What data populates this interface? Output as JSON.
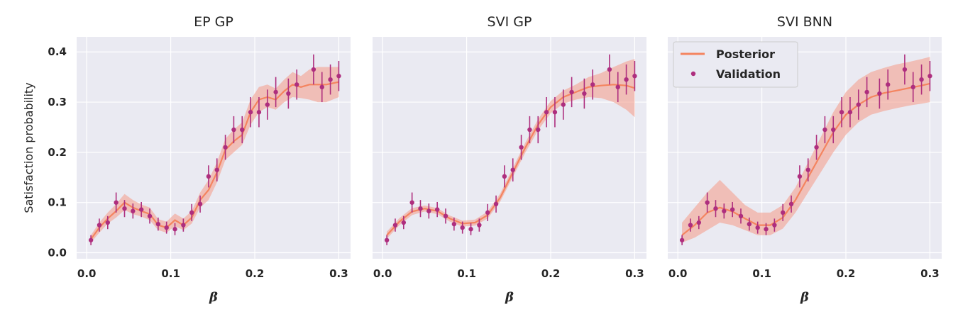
{
  "colors": {
    "band": "#f4a090",
    "mean": "#f4845f",
    "point": "#ae2e7e",
    "errorbar": "#ae2e7e"
  },
  "chart_data": [
    {
      "type": "line",
      "title": "EP GP",
      "xlabel": "β",
      "ylabel": "Satisfaction probability",
      "xlim": [
        -0.012,
        0.314
      ],
      "ylim": [
        -0.012,
        0.43
      ],
      "xticks": [
        "0.0",
        "0.1",
        "0.2",
        "0.3"
      ],
      "yticks": [
        "0.0",
        "0.1",
        "0.2",
        "0.3",
        "0.4"
      ],
      "grid": true,
      "legend": null,
      "series": [
        {
          "name": "Posterior",
          "kind": "mean_with_band",
          "x": [
            0.005,
            0.015,
            0.025,
            0.035,
            0.045,
            0.055,
            0.065,
            0.075,
            0.085,
            0.095,
            0.105,
            0.115,
            0.125,
            0.135,
            0.145,
            0.155,
            0.165,
            0.175,
            0.185,
            0.195,
            0.205,
            0.215,
            0.225,
            0.235,
            0.245,
            0.255,
            0.265,
            0.275,
            0.285,
            0.3
          ],
          "y": [
            0.027,
            0.05,
            0.068,
            0.083,
            0.1,
            0.09,
            0.083,
            0.077,
            0.055,
            0.05,
            0.065,
            0.055,
            0.07,
            0.105,
            0.125,
            0.16,
            0.205,
            0.222,
            0.235,
            0.28,
            0.305,
            0.31,
            0.305,
            0.322,
            0.335,
            0.33,
            0.335,
            0.335,
            0.335,
            0.34
          ],
          "lower": [
            0.02,
            0.04,
            0.058,
            0.07,
            0.085,
            0.077,
            0.072,
            0.065,
            0.045,
            0.04,
            0.053,
            0.045,
            0.058,
            0.09,
            0.105,
            0.14,
            0.185,
            0.2,
            0.215,
            0.255,
            0.28,
            0.29,
            0.285,
            0.3,
            0.31,
            0.308,
            0.305,
            0.3,
            0.3,
            0.31
          ],
          "upper": [
            0.035,
            0.06,
            0.08,
            0.097,
            0.117,
            0.105,
            0.096,
            0.09,
            0.067,
            0.062,
            0.078,
            0.068,
            0.083,
            0.12,
            0.145,
            0.18,
            0.227,
            0.245,
            0.26,
            0.305,
            0.33,
            0.335,
            0.327,
            0.345,
            0.36,
            0.352,
            0.365,
            0.37,
            0.37,
            0.37
          ]
        },
        {
          "name": "Validation",
          "kind": "points_with_errorbars",
          "x": [
            0.005,
            0.015,
            0.025,
            0.035,
            0.045,
            0.055,
            0.065,
            0.075,
            0.085,
            0.095,
            0.105,
            0.115,
            0.125,
            0.135,
            0.145,
            0.155,
            0.165,
            0.175,
            0.185,
            0.195,
            0.205,
            0.215,
            0.225,
            0.24,
            0.25,
            0.27,
            0.28,
            0.29,
            0.3
          ],
          "y": [
            0.025,
            0.055,
            0.06,
            0.1,
            0.088,
            0.083,
            0.086,
            0.073,
            0.057,
            0.05,
            0.047,
            0.055,
            0.08,
            0.097,
            0.152,
            0.165,
            0.21,
            0.245,
            0.245,
            0.28,
            0.28,
            0.295,
            0.32,
            0.317,
            0.335,
            0.365,
            0.33,
            0.345,
            0.352
          ],
          "err": [
            0.01,
            0.013,
            0.013,
            0.02,
            0.017,
            0.015,
            0.015,
            0.015,
            0.013,
            0.012,
            0.012,
            0.013,
            0.017,
            0.017,
            0.022,
            0.023,
            0.025,
            0.027,
            0.027,
            0.03,
            0.03,
            0.03,
            0.03,
            0.03,
            0.03,
            0.03,
            0.03,
            0.03,
            0.03
          ]
        }
      ]
    },
    {
      "type": "line",
      "title": "SVI GP",
      "xlabel": "β",
      "ylabel": "",
      "xlim": [
        -0.012,
        0.314
      ],
      "ylim": [
        -0.012,
        0.43
      ],
      "xticks": [
        "0.0",
        "0.1",
        "0.2",
        "0.3"
      ],
      "yticks": [],
      "grid": true,
      "legend": null,
      "series": [
        {
          "name": "Posterior",
          "kind": "mean_with_band",
          "x": [
            0.005,
            0.02,
            0.035,
            0.05,
            0.065,
            0.08,
            0.095,
            0.11,
            0.125,
            0.14,
            0.155,
            0.17,
            0.185,
            0.2,
            0.215,
            0.23,
            0.245,
            0.26,
            0.275,
            0.29,
            0.3
          ],
          "y": [
            0.035,
            0.062,
            0.082,
            0.088,
            0.083,
            0.068,
            0.058,
            0.06,
            0.075,
            0.11,
            0.16,
            0.21,
            0.255,
            0.29,
            0.31,
            0.32,
            0.33,
            0.333,
            0.335,
            0.333,
            0.328
          ],
          "lower": [
            0.028,
            0.055,
            0.075,
            0.082,
            0.077,
            0.062,
            0.052,
            0.054,
            0.068,
            0.102,
            0.151,
            0.2,
            0.244,
            0.278,
            0.297,
            0.305,
            0.31,
            0.308,
            0.3,
            0.285,
            0.27
          ],
          "upper": [
            0.042,
            0.069,
            0.089,
            0.094,
            0.089,
            0.074,
            0.064,
            0.066,
            0.082,
            0.118,
            0.169,
            0.22,
            0.266,
            0.302,
            0.323,
            0.335,
            0.35,
            0.358,
            0.37,
            0.381,
            0.386
          ]
        },
        {
          "name": "Validation",
          "kind": "points_with_errorbars",
          "x": [
            0.005,
            0.015,
            0.025,
            0.035,
            0.045,
            0.055,
            0.065,
            0.075,
            0.085,
            0.095,
            0.105,
            0.115,
            0.125,
            0.135,
            0.145,
            0.155,
            0.165,
            0.175,
            0.185,
            0.195,
            0.205,
            0.215,
            0.225,
            0.24,
            0.25,
            0.27,
            0.28,
            0.29,
            0.3
          ],
          "y": [
            0.025,
            0.055,
            0.06,
            0.1,
            0.088,
            0.083,
            0.086,
            0.073,
            0.057,
            0.05,
            0.047,
            0.055,
            0.08,
            0.097,
            0.152,
            0.165,
            0.21,
            0.245,
            0.245,
            0.28,
            0.28,
            0.295,
            0.32,
            0.317,
            0.335,
            0.365,
            0.33,
            0.345,
            0.352
          ],
          "err": [
            0.01,
            0.013,
            0.013,
            0.02,
            0.017,
            0.015,
            0.015,
            0.015,
            0.013,
            0.012,
            0.012,
            0.013,
            0.017,
            0.017,
            0.022,
            0.023,
            0.025,
            0.027,
            0.027,
            0.03,
            0.03,
            0.03,
            0.03,
            0.03,
            0.03,
            0.03,
            0.03,
            0.03,
            0.03
          ]
        }
      ]
    },
    {
      "type": "line",
      "title": "SVI BNN",
      "xlabel": "β",
      "ylabel": "",
      "xlim": [
        -0.012,
        0.314
      ],
      "ylim": [
        -0.012,
        0.43
      ],
      "xticks": [
        "0.0",
        "0.1",
        "0.2",
        "0.3"
      ],
      "yticks": [],
      "grid": true,
      "legend": {
        "placement": "top-left",
        "entries": [
          "Posterior",
          "Validation"
        ]
      },
      "series": [
        {
          "name": "Posterior",
          "kind": "mean_with_band",
          "x": [
            0.005,
            0.02,
            0.035,
            0.05,
            0.065,
            0.08,
            0.095,
            0.11,
            0.125,
            0.14,
            0.155,
            0.17,
            0.185,
            0.2,
            0.215,
            0.23,
            0.245,
            0.26,
            0.275,
            0.29,
            0.3
          ],
          "y": [
            0.035,
            0.055,
            0.08,
            0.09,
            0.082,
            0.068,
            0.055,
            0.055,
            0.07,
            0.105,
            0.15,
            0.195,
            0.24,
            0.275,
            0.295,
            0.31,
            0.318,
            0.323,
            0.328,
            0.333,
            0.337
          ],
          "lower": [
            0.02,
            0.03,
            0.045,
            0.06,
            0.055,
            0.045,
            0.035,
            0.035,
            0.048,
            0.08,
            0.12,
            0.16,
            0.2,
            0.235,
            0.26,
            0.275,
            0.282,
            0.288,
            0.293,
            0.297,
            0.3
          ],
          "upper": [
            0.06,
            0.09,
            0.12,
            0.145,
            0.12,
            0.095,
            0.08,
            0.08,
            0.095,
            0.13,
            0.18,
            0.23,
            0.28,
            0.32,
            0.345,
            0.36,
            0.368,
            0.375,
            0.38,
            0.386,
            0.39
          ]
        },
        {
          "name": "Validation",
          "kind": "points_with_errorbars",
          "x": [
            0.005,
            0.015,
            0.025,
            0.035,
            0.045,
            0.055,
            0.065,
            0.075,
            0.085,
            0.095,
            0.105,
            0.115,
            0.125,
            0.135,
            0.145,
            0.155,
            0.165,
            0.175,
            0.185,
            0.195,
            0.205,
            0.215,
            0.225,
            0.24,
            0.25,
            0.27,
            0.28,
            0.29,
            0.3
          ],
          "y": [
            0.025,
            0.055,
            0.06,
            0.1,
            0.088,
            0.083,
            0.086,
            0.073,
            0.057,
            0.05,
            0.047,
            0.055,
            0.08,
            0.097,
            0.152,
            0.165,
            0.21,
            0.245,
            0.245,
            0.28,
            0.28,
            0.295,
            0.32,
            0.317,
            0.335,
            0.365,
            0.33,
            0.345,
            0.352
          ],
          "err": [
            0.01,
            0.013,
            0.013,
            0.02,
            0.017,
            0.015,
            0.015,
            0.015,
            0.013,
            0.012,
            0.012,
            0.013,
            0.017,
            0.017,
            0.022,
            0.023,
            0.025,
            0.027,
            0.027,
            0.03,
            0.03,
            0.03,
            0.03,
            0.03,
            0.03,
            0.03,
            0.03,
            0.03,
            0.03
          ]
        }
      ]
    }
  ]
}
